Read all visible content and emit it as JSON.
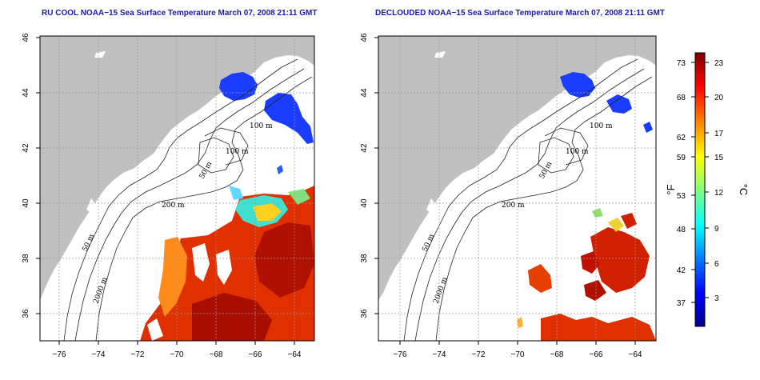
{
  "left_panel": {
    "title": "RU COOL NOAA−15 Sea Surface Temperature March 07, 2008 21:11 GMT",
    "contour_labels": [
      "100 m",
      "100 m",
      "50 m",
      "200 m",
      "50 m",
      "2000 m"
    ]
  },
  "right_panel": {
    "title": "DECLOUDED NOAA−15 Sea Surface Temperature March 07, 2008 21:11 GMT",
    "contour_labels": [
      "100 m",
      "100 m",
      "50 m",
      "200 m",
      "50 m",
      "2000 m"
    ]
  },
  "axes": {
    "x_ticks": [
      "−76",
      "−74",
      "−72",
      "−70",
      "−68",
      "−66",
      "−64"
    ],
    "y_ticks": [
      "46",
      "44",
      "42",
      "40",
      "38",
      "36"
    ]
  },
  "colorbar": {
    "f_label": "°F",
    "c_label": "°C",
    "f_ticks": [
      "73",
      "68",
      "62",
      "59",
      "53",
      "48",
      "42",
      "37"
    ],
    "c_ticks": [
      "23",
      "20",
      "17",
      "15",
      "12",
      "9",
      "6",
      "3"
    ],
    "colors": [
      "#00008f",
      "#0000ff",
      "#0080ff",
      "#00ffff",
      "#80ff80",
      "#ffff00",
      "#ff8000",
      "#ff0000",
      "#800000"
    ]
  },
  "map_colors": {
    "land": "#c0c0c0",
    "cloud": "#ffffff",
    "grid": "#9a9a9a"
  }
}
